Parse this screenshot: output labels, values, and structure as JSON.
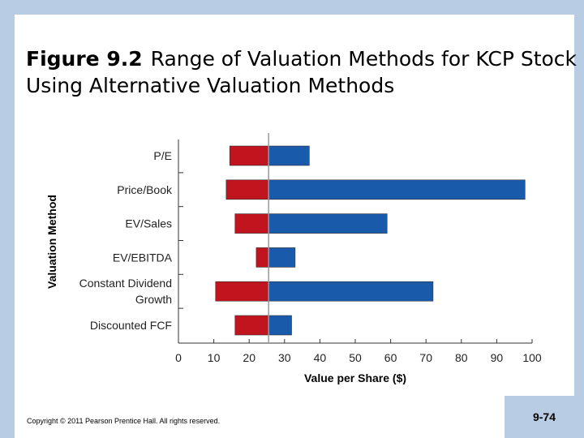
{
  "slide": {
    "title_figure": "Figure 9.2",
    "title_text": "Range of Valuation Methods for KCP Stock Using Alternative Valuation Methods",
    "copyright": "Copyright © 2011 Pearson Prentice Hall. All rights reserved.",
    "page_number": "9-74"
  },
  "colors": {
    "low_range": "#c0141f",
    "high_range": "#1a5aab",
    "bar_edge": "#333333",
    "reference_line": "#999999",
    "background_accent": "#b8cce4"
  },
  "chart_data": {
    "type": "bar",
    "orientation": "horizontal",
    "title": "",
    "xlabel": "Value per Share ($)",
    "ylabel": "Valuation Method",
    "xlim": [
      0,
      100
    ],
    "xticks": [
      0,
      10,
      20,
      30,
      40,
      50,
      60,
      70,
      80,
      90,
      100
    ],
    "reference_value": 25.5,
    "categories": [
      {
        "label": [
          "P/E"
        ],
        "low": 14.5,
        "high": 37
      },
      {
        "label": [
          "Price/Book"
        ],
        "low": 13.5,
        "high": 98
      },
      {
        "label": [
          "EV/Sales"
        ],
        "low": 16,
        "high": 59
      },
      {
        "label": [
          "EV/EBITDA"
        ],
        "low": 22,
        "high": 33
      },
      {
        "label": [
          "Constant Dividend",
          "Growth"
        ],
        "low": 10.5,
        "high": 72
      },
      {
        "label": [
          "Discounted FCF"
        ],
        "low": 16,
        "high": 32
      }
    ]
  }
}
